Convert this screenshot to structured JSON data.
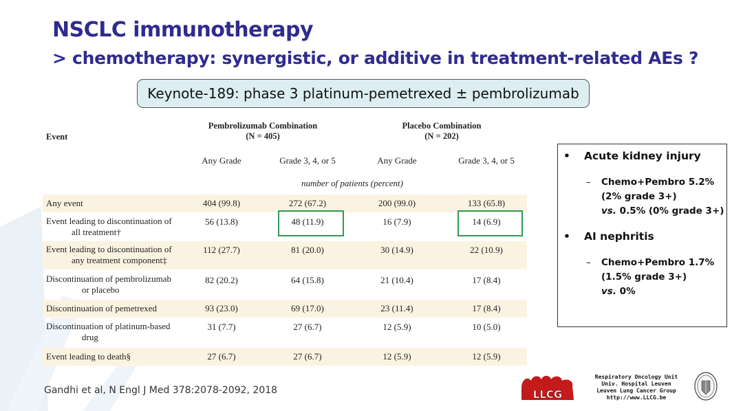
{
  "title": {
    "line1": "NSCLC immunotherapy",
    "line2": "> chemotherapy: synergistic, or additive in treatment-related AEs ?"
  },
  "subtitle": "Keynote-189: phase 3 platinum-pemetrexed ± pembrolizumab",
  "table": {
    "event_header": "Event",
    "group1": {
      "name": "Pembrolizumab Combination",
      "n": "(N = 405)"
    },
    "group2": {
      "name": "Placebo Combination",
      "n": "(N = 202)"
    },
    "subheaders": [
      "Any Grade",
      "Grade 3, 4, or 5",
      "Any Grade",
      "Grade 3, 4, or 5"
    ],
    "unit_note": "number of patients (percent)",
    "rows": [
      {
        "label1": "Any event",
        "label2": "",
        "values": [
          "404 (99.8)",
          "272 (67.2)",
          "200 (99.0)",
          "133 (65.8)"
        ]
      },
      {
        "label1": "Event leading to discontinuation of",
        "label2": "all treatment†",
        "values": [
          "56 (13.8)",
          "48 (11.9)",
          "16 (7.9)",
          "14 (6.9)"
        ]
      },
      {
        "label1": "Event leading to discontinuation of",
        "label2": "any treatment component‡",
        "values": [
          "112 (27.7)",
          "81 (20.0)",
          "30 (14.9)",
          "22 (10.9)"
        ]
      },
      {
        "label1": "Discontinuation of pembrolizumab",
        "label2": "or placebo",
        "values": [
          "82 (20.2)",
          "64 (15.8)",
          "21 (10.4)",
          "17 (8.4)"
        ]
      },
      {
        "label1": "Discontinuation of pemetrexed",
        "label2": "",
        "values": [
          "93 (23.0)",
          "69 (17.0)",
          "23 (11.4)",
          "17 (8.4)"
        ]
      },
      {
        "label1": "Discontinuation of platinum-based",
        "label2": "drug",
        "values": [
          "31 (7.7)",
          "27 (6.7)",
          "12 (5.9)",
          "10 (5.0)"
        ]
      },
      {
        "label1": "Event leading to death§",
        "label2": "",
        "values": [
          "27 (6.7)",
          "27 (6.7)",
          "12 (5.9)",
          "12 (5.9)"
        ]
      }
    ]
  },
  "summary": {
    "bullet1": "Acute kidney injury",
    "detail1": [
      "Chemo+Pembro  5.2%",
      "(2% grade 3+)",
      "0.5% (0% grade 3+)"
    ],
    "detail1_vs": "vs.",
    "bullet2": "AI nephritis",
    "detail2": [
      "Chemo+Pembro  1.7%",
      "(1.5% grade 3+)",
      "0%"
    ],
    "detail2_vs": "vs."
  },
  "citation": "Gandhi et al, N Engl J Med 378:2078-2092, 2018",
  "institution": [
    "Respiratory Oncology Unit",
    "Univ. Hospital Leuven",
    "Leuven Lung Cancer Group",
    "http://www.LLCG.be"
  ],
  "logo_text": "LLCG",
  "colors": {
    "title": "#2e2c8f",
    "subtitle_bg": "#dceef1",
    "highlight": "#2e9b4f",
    "row_shade": "#fbf3e1",
    "logo_red": "#c41a1a"
  }
}
